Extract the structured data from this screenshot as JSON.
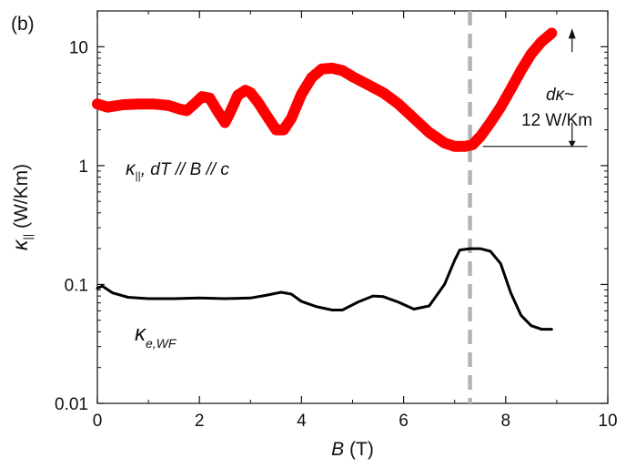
{
  "panel_label": "(b)",
  "chart_data": {
    "type": "line",
    "xlabel": {
      "var": "B",
      "unit": " (T)"
    },
    "ylabel": {
      "var": "κ",
      "sub": "||",
      "unit": " (W/Km)"
    },
    "xlim": [
      0,
      10
    ],
    "ylim": [
      0.01,
      20
    ],
    "yscale": "log",
    "grid": false,
    "x_ticks": [
      "0",
      "2",
      "4",
      "6",
      "8",
      "10"
    ],
    "y_ticks": [
      "0.01",
      "0.1",
      "1",
      "10"
    ],
    "series": [
      {
        "label": {
          "var": "κ",
          "sub": "||",
          "rest": ", dT // B // c"
        },
        "color": "#ff0000",
        "style": "thick-dots",
        "x": [
          0.0,
          0.2,
          0.5,
          0.8,
          1.1,
          1.4,
          1.6,
          1.75,
          1.9,
          2.05,
          2.2,
          2.35,
          2.5,
          2.6,
          2.75,
          2.9,
          3.0,
          3.15,
          3.3,
          3.5,
          3.65,
          3.8,
          4.0,
          4.2,
          4.4,
          4.6,
          4.8,
          5.0,
          5.3,
          5.6,
          5.9,
          6.2,
          6.5,
          6.8,
          7.0,
          7.2,
          7.35,
          7.5,
          7.7,
          7.9,
          8.1,
          8.3,
          8.5,
          8.7,
          8.9
        ],
        "y": [
          3.3,
          3.1,
          3.25,
          3.3,
          3.3,
          3.2,
          3.0,
          2.9,
          3.3,
          3.8,
          3.7,
          2.9,
          2.3,
          2.8,
          3.9,
          4.3,
          4.1,
          3.4,
          2.7,
          2.0,
          2.0,
          2.5,
          4.0,
          5.5,
          6.5,
          6.6,
          6.3,
          5.6,
          4.8,
          4.1,
          3.3,
          2.5,
          1.9,
          1.55,
          1.45,
          1.45,
          1.5,
          1.75,
          2.3,
          3.1,
          4.4,
          6.3,
          8.7,
          11.0,
          13.0
        ]
      },
      {
        "label": {
          "var": "κ",
          "sub": "e,WF"
        },
        "color": "#000000",
        "style": "line",
        "x": [
          0.0,
          0.1,
          0.3,
          0.6,
          1.0,
          1.5,
          2.0,
          2.5,
          3.0,
          3.3,
          3.6,
          3.8,
          4.0,
          4.3,
          4.6,
          4.8,
          5.1,
          5.4,
          5.6,
          5.9,
          6.2,
          6.5,
          6.8,
          7.0,
          7.1,
          7.3,
          7.5,
          7.7,
          7.9,
          8.1,
          8.3,
          8.5,
          8.7,
          8.9
        ],
        "y": [
          0.093,
          0.097,
          0.085,
          0.078,
          0.076,
          0.076,
          0.077,
          0.076,
          0.077,
          0.081,
          0.086,
          0.083,
          0.072,
          0.065,
          0.061,
          0.061,
          0.071,
          0.08,
          0.079,
          0.071,
          0.062,
          0.066,
          0.1,
          0.16,
          0.195,
          0.2,
          0.2,
          0.19,
          0.15,
          0.085,
          0.055,
          0.045,
          0.042,
          0.042
        ]
      }
    ],
    "reference_line": {
      "x": 7.3,
      "style": "dashed",
      "color": "#b4b4b4"
    },
    "annotation": {
      "var": "dκ",
      "tilde": "~",
      "value": "12 W/Km",
      "arrow_x": 9.3,
      "y_top": 13.0,
      "y_bottom": 1.45,
      "baseline_x_from": 7.55,
      "baseline_x_to": 9.6
    }
  }
}
